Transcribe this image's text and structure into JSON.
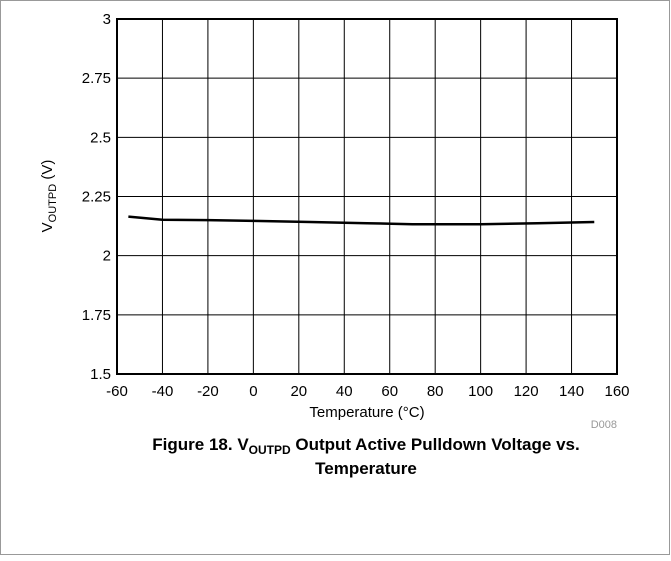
{
  "chart_data": {
    "type": "line",
    "title_parts": [
      "Figure 18. V",
      "OUTPD",
      " Output Active Pulldown Voltage vs.",
      "Temperature"
    ],
    "ylabel_parts": [
      "V",
      "OUTPD",
      " (V)"
    ],
    "xlabel": "Temperature (°C)",
    "note": "D008",
    "x": [
      -55,
      -40,
      -20,
      0,
      25,
      50,
      70,
      100,
      125,
      150
    ],
    "series": [
      {
        "name": "VOUTPD",
        "color": "#000000",
        "values": [
          2.165,
          2.152,
          2.15,
          2.147,
          2.142,
          2.137,
          2.133,
          2.133,
          2.137,
          2.142
        ]
      }
    ],
    "xlim": [
      -60,
      160
    ],
    "xticks": [
      -60,
      -40,
      -20,
      0,
      20,
      40,
      60,
      80,
      100,
      120,
      140,
      160
    ],
    "ylim": [
      1.5,
      3
    ],
    "yticks": [
      1.5,
      1.75,
      2,
      2.25,
      2.5,
      2.75,
      3
    ],
    "grid": true
  }
}
